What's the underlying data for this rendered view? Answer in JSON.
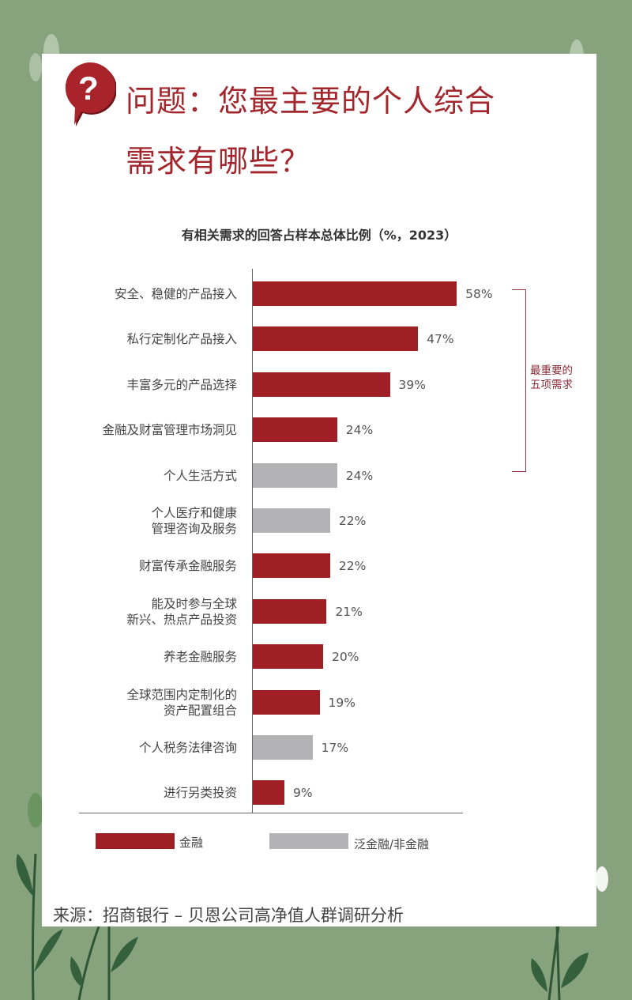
{
  "header": {
    "icon": "question-speech-bubble-icon",
    "title_line1": "问题：您最主要的个人综合",
    "title_line2": "需求有哪些？"
  },
  "colors": {
    "background": "#86a37e",
    "card": "#ffffff",
    "financial": "#a01f24",
    "non_financial": "#b3b3b5",
    "title": "#a3262c",
    "bracket": "#8a3a45"
  },
  "chart_data": {
    "type": "bar",
    "orientation": "horizontal",
    "title": "有相关需求的回答占样本总体比例（%，2023）",
    "xlabel": "",
    "ylabel": "",
    "xlim": [
      0,
      60
    ],
    "grid": false,
    "legend_position": "bottom",
    "categories": [
      "安全、稳健的产品接入",
      "私行定制化产品接入",
      "丰富多元的产品选择",
      "金融及财富管理市场洞见",
      "个人生活方式",
      "个人医疗和健康\n管理咨询及服务",
      "财富传承金融服务",
      "能及时参与全球\n新兴、热点产品投资",
      "养老金融服务",
      "全球范围内定制化的\n资产配置组合",
      "个人税务法律咨询",
      "进行另类投资"
    ],
    "values": [
      58,
      47,
      39,
      24,
      24,
      22,
      22,
      21,
      20,
      19,
      17,
      9
    ],
    "value_labels": [
      "58%",
      "47%",
      "39%",
      "24%",
      "24%",
      "22%",
      "22%",
      "21%",
      "20%",
      "19%",
      "17%",
      "9%"
    ],
    "groups": [
      "金融",
      "金融",
      "金融",
      "金融",
      "泛金融/非金融",
      "泛金融/非金融",
      "金融",
      "金融",
      "金融",
      "金融",
      "泛金融/非金融",
      "金融"
    ],
    "legend": [
      {
        "name": "金融",
        "color": "#a01f24"
      },
      {
        "name": "泛金融/非金融",
        "color": "#b3b3b5"
      }
    ],
    "annotations": [
      {
        "type": "bracket",
        "covers_rows": [
          0,
          4
        ],
        "text": "最重要的\n五项需求"
      }
    ]
  },
  "bracket": {
    "label_line1": "最重要的",
    "label_line2": "五项需求"
  },
  "legend": {
    "financial_label": "金融",
    "non_financial_label": "泛金融/非金融"
  },
  "footer": {
    "source": "来源：招商银行 – 贝恩公司高净值人群调研分析"
  }
}
